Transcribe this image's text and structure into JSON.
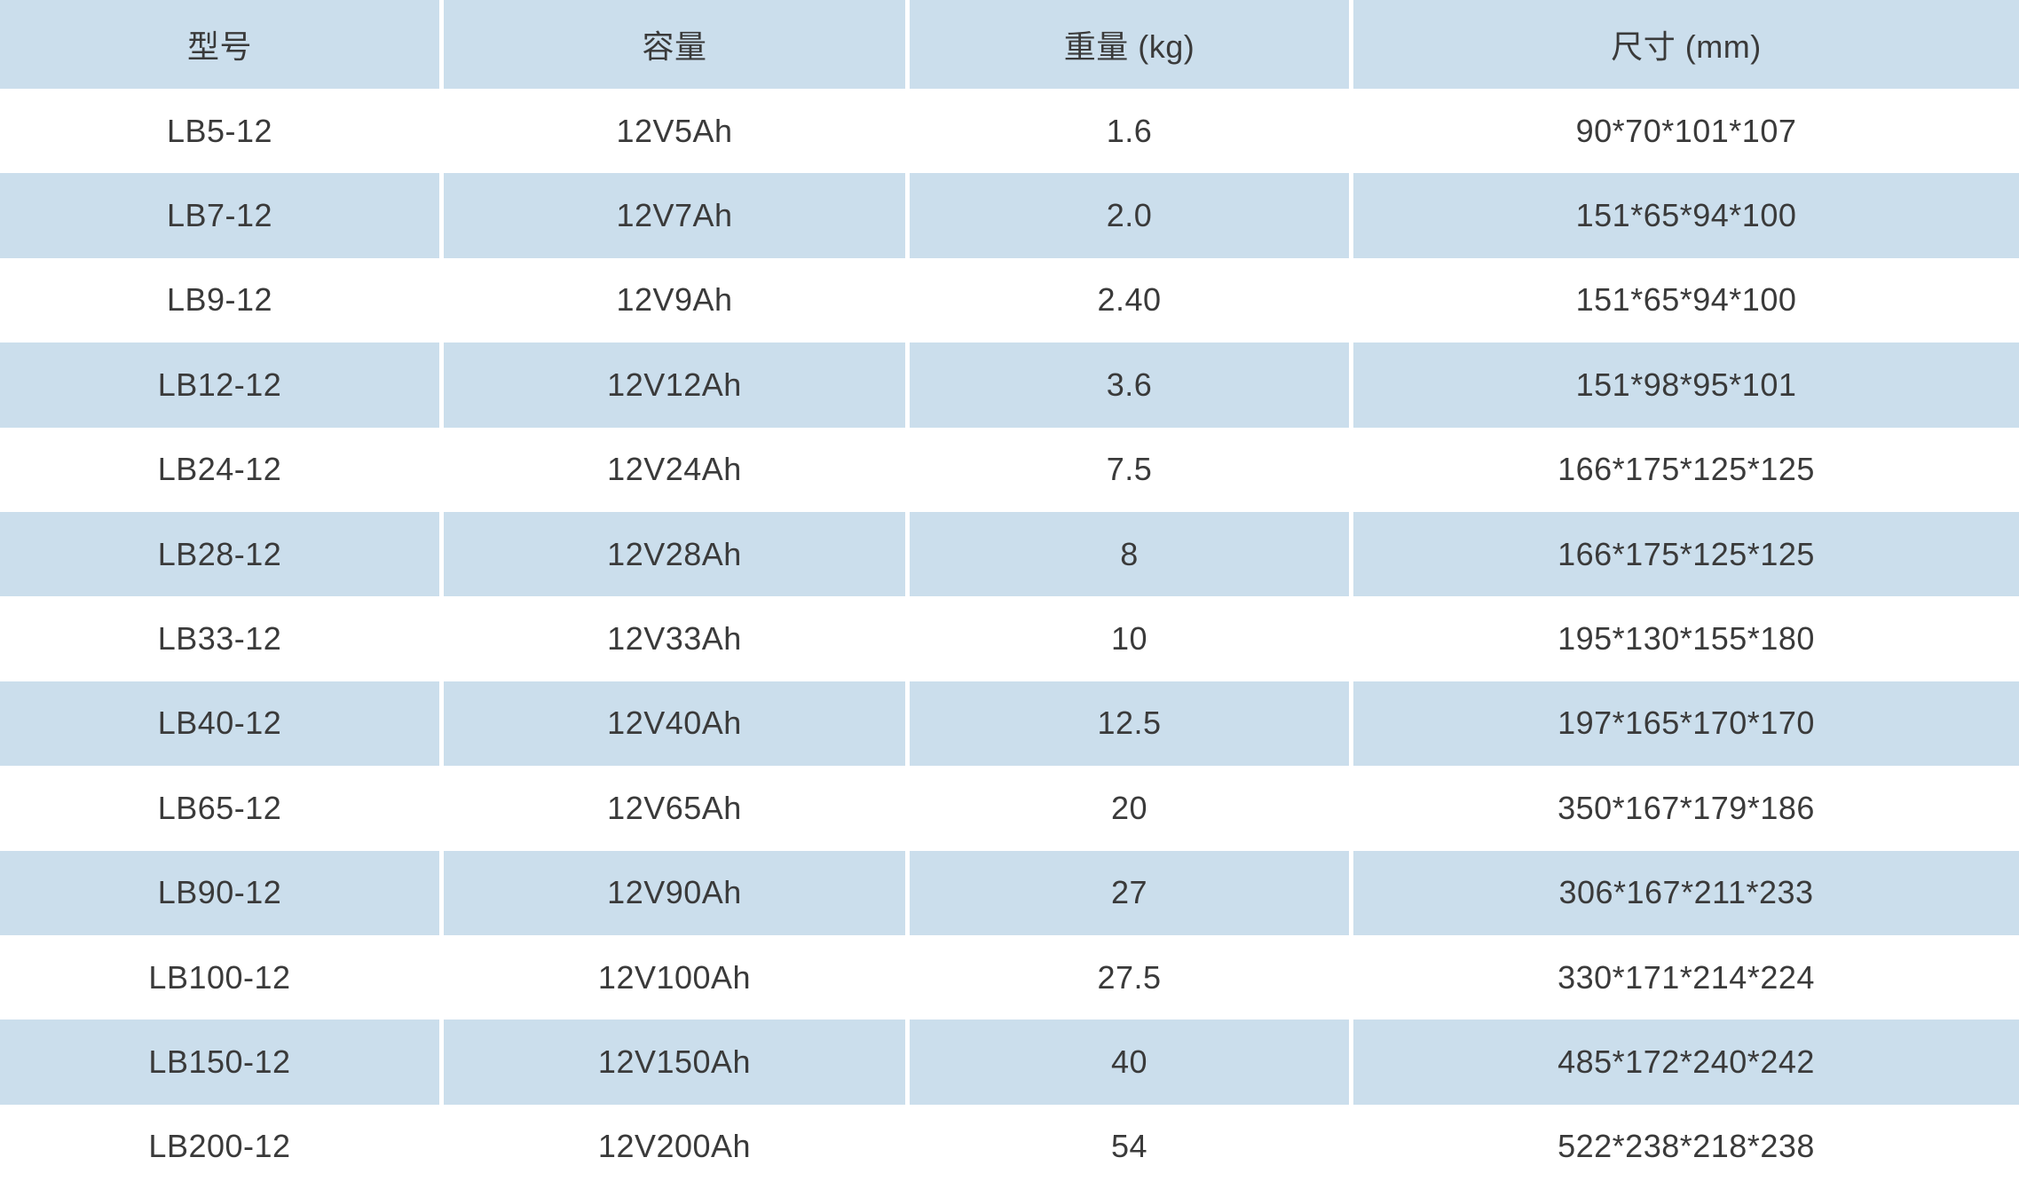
{
  "colors": {
    "row_alt_bg": "#cbdeec",
    "row_bg": "#ffffff",
    "text": "#3a3a3a"
  },
  "table": {
    "columns": [
      {
        "field": "model",
        "label": "型号"
      },
      {
        "field": "capacity",
        "label": "容量"
      },
      {
        "field": "weight",
        "label": "重量 (kg)"
      },
      {
        "field": "dimensions",
        "label": "尺寸 (mm)"
      }
    ],
    "rows": [
      {
        "model": "LB5-12",
        "capacity": "12V5Ah",
        "weight": "1.6",
        "dimensions": "90*70*101*107"
      },
      {
        "model": "LB7-12",
        "capacity": "12V7Ah",
        "weight": "2.0",
        "dimensions": "151*65*94*100"
      },
      {
        "model": "LB9-12",
        "capacity": "12V9Ah",
        "weight": "2.40",
        "dimensions": "151*65*94*100"
      },
      {
        "model": "LB12-12",
        "capacity": "12V12Ah",
        "weight": "3.6",
        "dimensions": "151*98*95*101"
      },
      {
        "model": "LB24-12",
        "capacity": "12V24Ah",
        "weight": "7.5",
        "dimensions": "166*175*125*125"
      },
      {
        "model": "LB28-12",
        "capacity": "12V28Ah",
        "weight": "8",
        "dimensions": "166*175*125*125"
      },
      {
        "model": "LB33-12",
        "capacity": "12V33Ah",
        "weight": "10",
        "dimensions": "195*130*155*180"
      },
      {
        "model": "LB40-12",
        "capacity": "12V40Ah",
        "weight": "12.5",
        "dimensions": "197*165*170*170"
      },
      {
        "model": "LB65-12",
        "capacity": "12V65Ah",
        "weight": "20",
        "dimensions": "350*167*179*186"
      },
      {
        "model": "LB90-12",
        "capacity": "12V90Ah",
        "weight": "27",
        "dimensions": "306*167*211*233"
      },
      {
        "model": "LB100-12",
        "capacity": "12V100Ah",
        "weight": "27.5",
        "dimensions": "330*171*214*224"
      },
      {
        "model": "LB150-12",
        "capacity": "12V150Ah",
        "weight": "40",
        "dimensions": "485*172*240*242"
      },
      {
        "model": "LB200-12",
        "capacity": "12V200Ah",
        "weight": "54",
        "dimensions": "522*238*218*238"
      }
    ]
  }
}
